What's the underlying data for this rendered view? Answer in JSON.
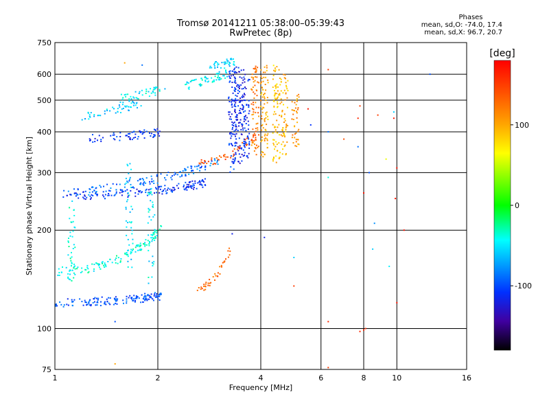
{
  "header": {
    "title_line1": "Tromsø 20141211 05:38:00–05:39:43",
    "title_line2": "RwPretec (8p)",
    "stats_title": "Phases",
    "stats_line1": "mean, sd,O: -74.0, 17.4",
    "stats_line2": "mean, sd,X: 96.7, 20.7"
  },
  "chart_data": {
    "type": "scatter",
    "xlabel": "Frequency [MHz]",
    "ylabel": "Stationary phase Virtual Height [km]",
    "xscale": "log",
    "yscale": "log",
    "xlim": [
      1,
      16
    ],
    "ylim": [
      75,
      750
    ],
    "x_ticks": [
      1,
      2,
      4,
      6,
      8,
      10,
      16
    ],
    "y_ticks": [
      75,
      100,
      200,
      300,
      400,
      500,
      600,
      750
    ],
    "x_grid": [
      2,
      4,
      6,
      8,
      10
    ],
    "y_grid": [
      100,
      200,
      300,
      400,
      500,
      600
    ],
    "grid": true,
    "colorbar": {
      "label": "[deg]",
      "range": [
        -180,
        180
      ],
      "ticks": [
        100,
        0,
        -100
      ]
    },
    "traces": [
      {
        "x0": 1.0,
        "x1": 2.05,
        "h": 120,
        "a": 0.05,
        "p": 1.5,
        "phase": -100,
        "n": 150
      },
      {
        "x0": 1.02,
        "x1": 2.05,
        "h": 150,
        "a": 0.35,
        "p": 2.0,
        "phase": -40,
        "n": 120
      },
      {
        "x0": 1.08,
        "x1": 2.8,
        "h": 255,
        "a": 0.1,
        "p": 1.5,
        "phase": -110,
        "n": 160
      },
      {
        "x0": 1.05,
        "x1": 3.0,
        "h": 260,
        "a": 0.25,
        "p": 1.2,
        "phase": -90,
        "n": 130
      },
      {
        "x0": 1.25,
        "x1": 2.05,
        "h": 380,
        "a": 0.05,
        "p": 1.0,
        "phase": -110,
        "n": 70
      },
      {
        "x0": 1.2,
        "x1": 1.8,
        "h": 445,
        "a": 0.1,
        "p": 1.0,
        "phase": -60,
        "n": 50
      },
      {
        "x0": 1.55,
        "x1": 2.1,
        "h": 505,
        "a": 0.07,
        "p": 1.0,
        "phase": -50,
        "n": 45
      },
      {
        "x0": 2.4,
        "x1": 3.2,
        "h": 550,
        "a": 0.1,
        "p": 1.0,
        "phase": -50,
        "n": 60
      },
      {
        "x0": 2.8,
        "x1": 3.35,
        "h": 630,
        "a": 0.04,
        "p": 1.0,
        "phase": -60,
        "n": 40
      }
    ],
    "columns": [
      {
        "x": 3.3,
        "y0": 300,
        "y1": 630,
        "phase": -110,
        "n": 100
      },
      {
        "x": 3.45,
        "y0": 320,
        "y1": 640,
        "phase": -120,
        "n": 90
      },
      {
        "x": 3.62,
        "y0": 330,
        "y1": 620,
        "phase": -115,
        "n": 80
      },
      {
        "x": 3.85,
        "y0": 340,
        "y1": 640,
        "phase": 120,
        "n": 70
      },
      {
        "x": 4.1,
        "y0": 330,
        "y1": 640,
        "phase": 100,
        "n": 80
      },
      {
        "x": 4.45,
        "y0": 320,
        "y1": 640,
        "phase": 90,
        "n": 80
      },
      {
        "x": 4.7,
        "y0": 340,
        "y1": 600,
        "phase": 95,
        "n": 60
      },
      {
        "x": 5.05,
        "y0": 360,
        "y1": 520,
        "phase": 110,
        "n": 40
      },
      {
        "x": 1.12,
        "y0": 140,
        "y1": 250,
        "phase": -40,
        "n": 40
      },
      {
        "x": 1.65,
        "y0": 150,
        "y1": 330,
        "phase": -55,
        "n": 40
      },
      {
        "x": 1.92,
        "y0": 135,
        "y1": 270,
        "phase": -50,
        "n": 40
      }
    ],
    "curves": [
      {
        "x0": 2.55,
        "x1": 3.9,
        "h0": 320,
        "h1": 400,
        "phase": 140,
        "n": 50
      },
      {
        "x0": 2.6,
        "x1": 3.25,
        "h0": 132,
        "h1": 175,
        "phase": 130,
        "n": 40
      }
    ],
    "sparse_points": [
      [
        6.3,
        620,
        150
      ],
      [
        6.3,
        400,
        -90
      ],
      [
        6.3,
        290,
        -40
      ],
      [
        7.0,
        380,
        140
      ],
      [
        7.7,
        360,
        -90
      ],
      [
        7.7,
        440,
        160
      ],
      [
        7.8,
        480,
        150
      ],
      [
        8.0,
        260,
        170
      ],
      [
        8.1,
        100,
        160
      ],
      [
        8.3,
        300,
        -100
      ],
      [
        8.6,
        210,
        -80
      ],
      [
        8.8,
        450,
        150
      ],
      [
        9.3,
        330,
        60
      ],
      [
        9.8,
        460,
        -60
      ],
      [
        9.8,
        440,
        170
      ],
      [
        9.9,
        250,
        170
      ],
      [
        10.0,
        310,
        170
      ],
      [
        10.0,
        120,
        170
      ],
      [
        10.5,
        200,
        170
      ],
      [
        12.5,
        600,
        -100
      ],
      [
        3.3,
        195,
        -120
      ],
      [
        4.1,
        190,
        -120
      ],
      [
        5.0,
        165,
        -60
      ],
      [
        5.0,
        135,
        150
      ],
      [
        6.3,
        105,
        160
      ],
      [
        7.8,
        98,
        160
      ],
      [
        8.0,
        99,
        160
      ],
      [
        6.3,
        76,
        150
      ],
      [
        1.5,
        78,
        100
      ],
      [
        1.5,
        105,
        -100
      ],
      [
        1.6,
        650,
        100
      ],
      [
        1.8,
        640,
        -90
      ],
      [
        5.5,
        470,
        170
      ],
      [
        5.6,
        420,
        -110
      ],
      [
        8.5,
        175,
        -60
      ],
      [
        9.5,
        155,
        -50
      ]
    ]
  }
}
